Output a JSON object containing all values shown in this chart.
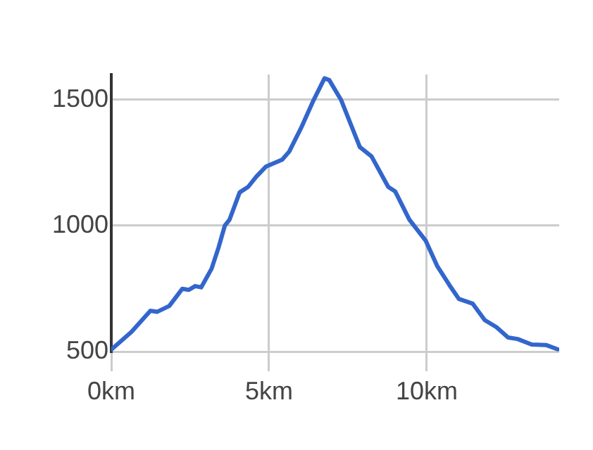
{
  "chart_data": {
    "type": "line",
    "x": [
      0,
      0.64,
      1.24,
      1.46,
      1.84,
      2.25,
      2.46,
      2.66,
      2.85,
      3.18,
      3.4,
      3.6,
      3.75,
      4.07,
      4.34,
      4.6,
      4.9,
      5.42,
      5.64,
      6.01,
      6.39,
      6.76,
      6.91,
      7.29,
      7.88,
      8.25,
      8.78,
      9.0,
      9.45,
      9.97,
      10.34,
      10.72,
      11.02,
      11.46,
      11.84,
      12.21,
      12.58,
      12.88,
      13.33,
      13.78,
      14.15
    ],
    "series": [
      {
        "color": "#3366cc",
        "values": [
          508,
          578,
          662,
          658,
          681,
          749,
          745,
          760,
          755,
          829,
          913,
          1000,
          1024,
          1132,
          1154,
          1195,
          1234,
          1262,
          1294,
          1386,
          1492,
          1585,
          1578,
          1498,
          1312,
          1275,
          1154,
          1136,
          1024,
          940,
          838,
          764,
          709,
          690,
          625,
          597,
          556,
          550,
          528,
          526,
          509
        ]
      }
    ],
    "xlim": [
      0,
      14.2
    ],
    "xticks": [
      {
        "value": 0,
        "label": "0km"
      },
      {
        "value": 5,
        "label": "5km"
      },
      {
        "value": 10,
        "label": "10km"
      }
    ],
    "ylim": [
      500,
      1600
    ],
    "yticks": [
      500,
      1000,
      1500
    ],
    "grid": true,
    "legend": false,
    "marker": "none",
    "line_style": "solid"
  }
}
